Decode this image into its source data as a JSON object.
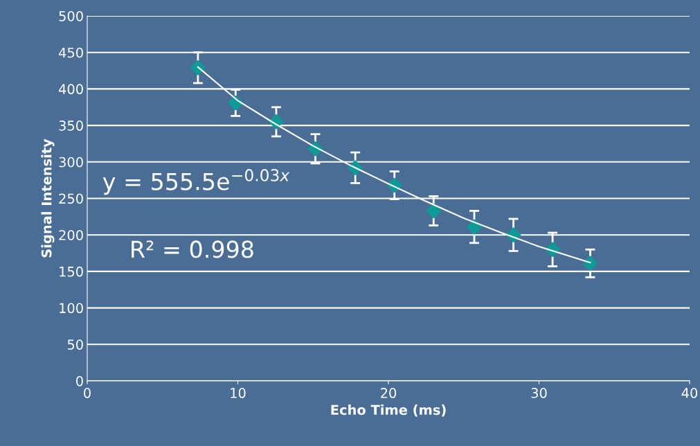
{
  "chart_data": {
    "type": "scatter",
    "xlabel": "Echo Time (ms)",
    "ylabel": "Signal Intensity",
    "annotations": [
      "y = 555.5e$^{−0.03x}$",
      "R² = 0.998"
    ],
    "series": [
      {
        "type": "scatter",
        "color": "#0e9a96",
        "x": [
          7.35,
          9.85,
          12.55,
          15.15,
          17.8,
          20.4,
          23.0,
          25.7,
          28.3,
          30.9,
          33.4
        ],
        "values": [
          429,
          381,
          355,
          318,
          292,
          268,
          233,
          211,
          200,
          180,
          161
        ],
        "errors": [
          21,
          18,
          20,
          20,
          21,
          19,
          20,
          22,
          22,
          23,
          19
        ],
        "marker": "diamond"
      },
      {
        "type": "line",
        "color": "#ffffff",
        "x": [
          7.35,
          10,
          12.5,
          15,
          17.5,
          20,
          22.5,
          25,
          27.5,
          30,
          33.4
        ],
        "values": [
          430,
          384,
          352,
          322,
          295,
          270,
          246,
          223,
          203,
          184,
          162
        ]
      }
    ],
    "xlim": [
      0,
      40
    ],
    "xticks": [
      0,
      10,
      20,
      30,
      40
    ],
    "ylim": [
      0,
      500
    ],
    "yticks": [
      0,
      50,
      100,
      150,
      200,
      250,
      300,
      350,
      400,
      450,
      500
    ],
    "grid": "y"
  }
}
